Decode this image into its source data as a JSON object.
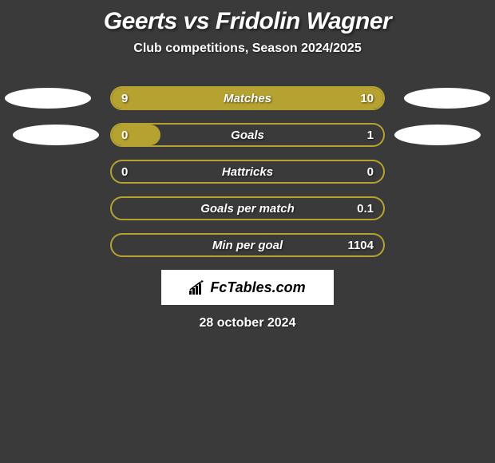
{
  "title": "Geerts vs Fridolin Wagner",
  "subtitle": "Club competitions, Season 2024/2025",
  "date": "28 october 2024",
  "logo": "FcTables.com",
  "colors": {
    "background": "#3a3a3a",
    "bar_primary": "#b5a230",
    "bar_border": "#b5a230",
    "ellipse": "#ffffff",
    "text": "#ffffff",
    "text_shadow": "rgba(0,0,0,0.6)"
  },
  "typography": {
    "title_fontsize": 30,
    "subtitle_fontsize": 16,
    "bar_label_fontsize": 15,
    "date_fontsize": 16
  },
  "stats": [
    {
      "label": "Matches",
      "left_value": "9",
      "right_value": "10",
      "left_num": 9,
      "right_num": 10,
      "left_pct": 47.4,
      "right_pct": 52.6,
      "show_ellipses": true,
      "fill_mode": "split"
    },
    {
      "label": "Goals",
      "left_value": "0",
      "right_value": "1",
      "left_num": 0,
      "right_num": 1,
      "left_pct": 18,
      "right_pct": 0,
      "show_ellipses": true,
      "fill_mode": "left-only"
    },
    {
      "label": "Hattricks",
      "left_value": "0",
      "right_value": "0",
      "left_num": 0,
      "right_num": 0,
      "left_pct": 0,
      "right_pct": 0,
      "show_ellipses": false,
      "fill_mode": "none"
    },
    {
      "label": "Goals per match",
      "left_value": "",
      "right_value": "0.1",
      "left_num": 0,
      "right_num": 0.1,
      "left_pct": 0,
      "right_pct": 0,
      "show_ellipses": false,
      "fill_mode": "none"
    },
    {
      "label": "Min per goal",
      "left_value": "",
      "right_value": "1104",
      "left_num": 0,
      "right_num": 1104,
      "left_pct": 0,
      "right_pct": 0,
      "show_ellipses": false,
      "fill_mode": "none"
    }
  ]
}
